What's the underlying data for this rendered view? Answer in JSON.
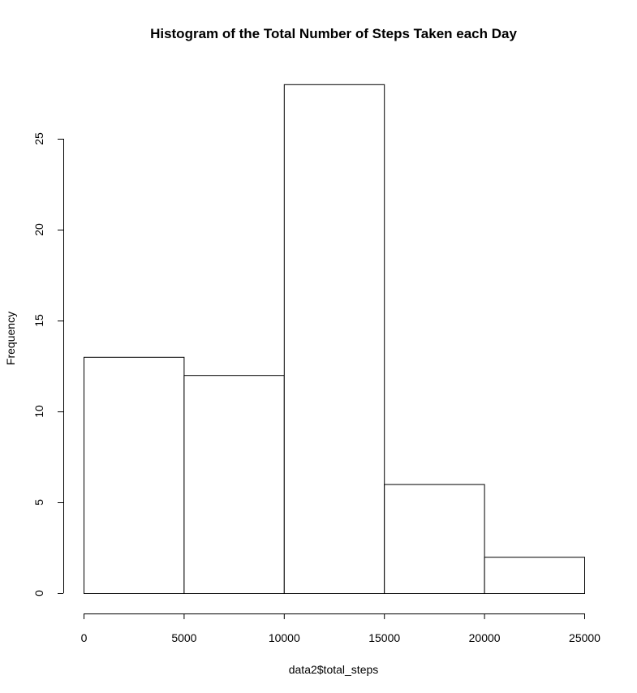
{
  "chart_data": {
    "type": "bar",
    "title": "Histogram of the Total Number of Steps Taken each Day",
    "xlabel": "data2$total_steps",
    "ylabel": "Frequency",
    "bins": [
      {
        "from": 0,
        "to": 5000,
        "count": 13
      },
      {
        "from": 5000,
        "to": 10000,
        "count": 12
      },
      {
        "from": 10000,
        "to": 15000,
        "count": 28
      },
      {
        "from": 15000,
        "to": 20000,
        "count": 6
      },
      {
        "from": 20000,
        "to": 25000,
        "count": 2
      }
    ],
    "x_ticks": [
      0,
      5000,
      10000,
      15000,
      20000,
      25000
    ],
    "y_ticks": [
      0,
      5,
      10,
      15,
      20,
      25
    ],
    "xlim": [
      0,
      25000
    ],
    "ylim": [
      0,
      28
    ],
    "grid": false,
    "colors": {
      "bar_fill": "#ffffff",
      "bar_stroke": "#000000"
    }
  }
}
